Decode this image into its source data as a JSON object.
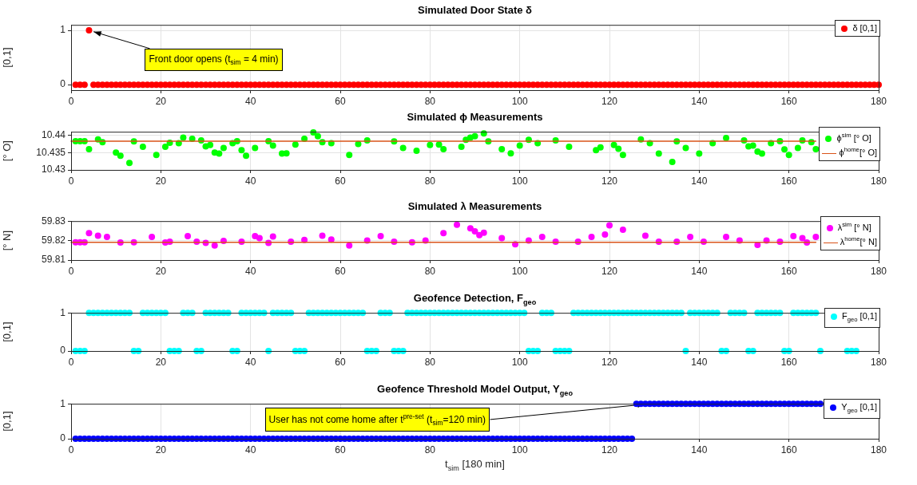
{
  "chart_data": [
    {
      "type": "scatter",
      "title": "Simulated Door State δ",
      "ylabel": "[0,1]",
      "xlim": [
        0,
        180
      ],
      "xticks": [
        0,
        20,
        40,
        60,
        80,
        100,
        120,
        140,
        160,
        180
      ],
      "ylim": [
        -0.1,
        1.1
      ],
      "yticks": [
        0,
        1
      ],
      "grid": true,
      "legend": "top right",
      "marker": "circle",
      "annotations": [
        {
          "text": "Front door opens (t$_{sim}$ = 4 min)",
          "x": 4,
          "y": 1
        }
      ],
      "x": [
        1,
        2,
        3,
        4,
        5,
        6,
        7,
        8,
        9,
        10,
        11,
        12,
        13,
        14,
        15,
        16,
        17,
        18,
        19,
        20,
        21,
        22,
        23,
        24,
        25,
        26,
        27,
        28,
        29,
        30,
        31,
        32,
        33,
        34,
        35,
        36,
        37,
        38,
        39,
        40,
        41,
        42,
        43,
        44,
        45,
        46,
        47,
        48,
        49,
        50,
        51,
        52,
        53,
        54,
        55,
        56,
        57,
        58,
        59,
        60,
        61,
        62,
        63,
        64,
        65,
        66,
        67,
        68,
        69,
        70,
        71,
        72,
        73,
        74,
        75,
        76,
        77,
        78,
        79,
        80,
        81,
        82,
        83,
        84,
        85,
        86,
        87,
        88,
        89,
        90,
        91,
        92,
        93,
        94,
        95,
        96,
        97,
        98,
        99,
        100,
        101,
        102,
        103,
        104,
        105,
        106,
        107,
        108,
        109,
        110,
        111,
        112,
        113,
        114,
        115,
        116,
        117,
        118,
        119,
        120,
        121,
        122,
        123,
        124,
        125,
        126,
        127,
        128,
        129,
        130,
        131,
        132,
        133,
        134,
        135,
        136,
        137,
        138,
        139,
        140,
        141,
        142,
        143,
        144,
        145,
        146,
        147,
        148,
        149,
        150,
        151,
        152,
        153,
        154,
        155,
        156,
        157,
        158,
        159,
        160,
        161,
        162,
        163,
        164,
        165,
        166,
        167,
        168,
        169,
        170,
        171,
        172,
        173,
        174,
        175,
        176,
        177,
        178,
        179,
        180
      ],
      "series": [
        {
          "name": "δ [0,1]",
          "color": "#ff0000",
          "values": [
            0,
            0,
            0,
            1,
            0,
            0,
            0,
            0,
            0,
            0,
            0,
            0,
            0,
            0,
            0,
            0,
            0,
            0,
            0,
            0,
            0,
            0,
            0,
            0,
            0,
            0,
            0,
            0,
            0,
            0,
            0,
            0,
            0,
            0,
            0,
            0,
            0,
            0,
            0,
            0,
            0,
            0,
            0,
            0,
            0,
            0,
            0,
            0,
            0,
            0,
            0,
            0,
            0,
            0,
            0,
            0,
            0,
            0,
            0,
            0,
            0,
            0,
            0,
            0,
            0,
            0,
            0,
            0,
            0,
            0,
            0,
            0,
            0,
            0,
            0,
            0,
            0,
            0,
            0,
            0,
            0,
            0,
            0,
            0,
            0,
            0,
            0,
            0,
            0,
            0,
            0,
            0,
            0,
            0,
            0,
            0,
            0,
            0,
            0,
            0,
            0,
            0,
            0,
            0,
            0,
            0,
            0,
            0,
            0,
            0,
            0,
            0,
            0,
            0,
            0,
            0,
            0,
            0,
            0,
            0,
            0,
            0,
            0,
            0,
            0,
            0,
            0,
            0,
            0,
            0,
            0,
            0,
            0,
            0,
            0,
            0,
            0,
            0,
            0,
            0,
            0,
            0,
            0,
            0,
            0,
            0,
            0,
            0,
            0,
            0,
            0,
            0,
            0,
            0,
            0,
            0,
            0,
            0,
            0,
            0,
            0,
            0,
            0,
            0,
            0,
            0,
            0,
            0,
            0,
            0,
            0,
            0,
            0,
            0,
            0,
            0,
            0,
            0,
            0,
            0
          ]
        }
      ]
    },
    {
      "type": "scatter",
      "title": "Simulated ϕ Measurements",
      "ylabel": "[° O]",
      "xlim": [
        0,
        180
      ],
      "xticks": [
        0,
        20,
        40,
        60,
        80,
        100,
        120,
        140,
        160,
        180
      ],
      "ylim": [
        10.43,
        10.441
      ],
      "yticks": [
        10.43,
        10.435,
        10.44
      ],
      "grid": true,
      "legend": "top right",
      "marker": "circle",
      "series": [
        {
          "name": "ϕ$^{sim}$ [° O]",
          "color": "#00ff00",
          "x": [
            1,
            2,
            3,
            4,
            6,
            7,
            10,
            11,
            13,
            14,
            16,
            19,
            21,
            22,
            24,
            25,
            27,
            29,
            30,
            31,
            32,
            33,
            34,
            36,
            37,
            38,
            39,
            41,
            44,
            45,
            47,
            48,
            50,
            52,
            54,
            55,
            56,
            58,
            62,
            64,
            66,
            72,
            74,
            77,
            80,
            82,
            83,
            87,
            88,
            89,
            90,
            92,
            93,
            96,
            98,
            100,
            102,
            104,
            108,
            111,
            117,
            118,
            121,
            122,
            123,
            127,
            129,
            131,
            134,
            135,
            137,
            140,
            143,
            146,
            150,
            151,
            152,
            153,
            154,
            156,
            158,
            159,
            160,
            162,
            163,
            165,
            166
          ],
          "values": [
            10.4383,
            10.4383,
            10.4383,
            10.436,
            10.4388,
            10.438,
            10.435,
            10.4341,
            10.432,
            10.4382,
            10.4367,
            10.4343,
            10.4367,
            10.4378,
            10.4377,
            10.4393,
            10.439,
            10.4385,
            10.4368,
            10.4372,
            10.435,
            10.4347,
            10.4363,
            10.4377,
            10.4383,
            10.4357,
            10.4341,
            10.4363,
            10.4383,
            10.437,
            10.4347,
            10.4348,
            10.4373,
            10.439,
            10.4408,
            10.4397,
            10.438,
            10.4377,
            10.4343,
            10.4375,
            10.4385,
            10.4382,
            10.4363,
            10.4355,
            10.4372,
            10.4373,
            10.436,
            10.4367,
            10.4387,
            10.4393,
            10.4397,
            10.4405,
            10.4382,
            10.436,
            10.4348,
            10.437,
            10.4387,
            10.4377,
            10.4385,
            10.4367,
            10.4357,
            10.4365,
            10.4372,
            10.4361,
            10.4343,
            10.4388,
            10.4377,
            10.4347,
            10.4323,
            10.4382,
            10.4363,
            10.4347,
            10.4377,
            10.4392,
            10.4385,
            10.4368,
            10.437,
            10.4353,
            10.4347,
            10.4377,
            10.4383,
            10.4359,
            10.4343,
            10.4363,
            10.4385,
            10.438,
            10.436
          ]
        },
        {
          "name": "ϕ$^{home}$[° O]",
          "color": "#d95319",
          "type": "line",
          "marker": "none",
          "x": [
            0,
            166
          ],
          "values": [
            10.4383,
            10.4383
          ]
        }
      ]
    },
    {
      "type": "scatter",
      "title": "Simulated λ Measurements",
      "ylabel": "[° N]",
      "xlim": [
        0,
        180
      ],
      "xticks": [
        0,
        20,
        40,
        60,
        80,
        100,
        120,
        140,
        160,
        180
      ],
      "ylim": [
        59.81,
        59.83
      ],
      "yticks": [
        59.81,
        59.82,
        59.83
      ],
      "grid": true,
      "legend": "top right",
      "marker": "circle",
      "series": [
        {
          "name": "λ$^{sim}$ [° N]",
          "color": "#ff00ff",
          "x": [
            1,
            2,
            3,
            4,
            6,
            8,
            11,
            14,
            18,
            21,
            22,
            26,
            28,
            30,
            32,
            34,
            38,
            41,
            42,
            44,
            45,
            49,
            52,
            56,
            58,
            62,
            66,
            69,
            72,
            76,
            79,
            83,
            86,
            89,
            90,
            91,
            92,
            96,
            99,
            102,
            105,
            108,
            113,
            116,
            119,
            120,
            123,
            128,
            131,
            135,
            138,
            141,
            146,
            149,
            153,
            155,
            158,
            161,
            163,
            164,
            166
          ],
          "values": [
            59.8191,
            59.8191,
            59.8191,
            59.8238,
            59.8225,
            59.8219,
            59.819,
            59.8191,
            59.8219,
            59.819,
            59.8194,
            59.8223,
            59.8194,
            59.8188,
            59.8175,
            59.8198,
            59.8194,
            59.8223,
            59.8213,
            59.8188,
            59.8221,
            59.8194,
            59.8203,
            59.8225,
            59.8206,
            59.8175,
            59.82,
            59.8223,
            59.8194,
            59.8191,
            59.82,
            59.8238,
            59.8281,
            59.8263,
            59.8248,
            59.8228,
            59.824,
            59.8213,
            59.8181,
            59.82,
            59.8219,
            59.8194,
            59.8194,
            59.8219,
            59.8231,
            59.8278,
            59.8256,
            59.8225,
            59.8194,
            59.8194,
            59.8219,
            59.8194,
            59.8219,
            59.82,
            59.8178,
            59.82,
            59.8194,
            59.8223,
            59.8213,
            59.819,
            59.8219
          ]
        },
        {
          "name": "λ$^{home}$[° N]",
          "color": "#d95319",
          "type": "line",
          "marker": "none",
          "x": [
            0,
            166
          ],
          "values": [
            59.8191,
            59.8191
          ]
        }
      ]
    },
    {
      "type": "scatter",
      "title": "Geofence Detection, F$_{geo}$",
      "ylabel": "[0,1]",
      "xlim": [
        0,
        180
      ],
      "xticks": [
        0,
        20,
        40,
        60,
        80,
        100,
        120,
        140,
        160,
        180
      ],
      "ylim": [
        0,
        1
      ],
      "yticks": [
        0,
        1
      ],
      "grid": true,
      "legend": "top right",
      "marker": "circle",
      "series": [
        {
          "name": "F$_{geo}$ [0,1]",
          "color": "#00ffff",
          "x": [
            1,
            2,
            3,
            4,
            5,
            6,
            7,
            8,
            9,
            10,
            11,
            12,
            13,
            14,
            15,
            16,
            17,
            18,
            19,
            20,
            21,
            22,
            23,
            24,
            25,
            26,
            27,
            28,
            29,
            30,
            31,
            32,
            33,
            34,
            35,
            36,
            37,
            38,
            39,
            40,
            41,
            42,
            43,
            44,
            45,
            46,
            47,
            48,
            49,
            50,
            51,
            52,
            53,
            54,
            55,
            56,
            57,
            58,
            59,
            60,
            61,
            62,
            63,
            64,
            65,
            66,
            67,
            68,
            69,
            70,
            71,
            72,
            73,
            74,
            75,
            76,
            77,
            78,
            79,
            80,
            81,
            82,
            83,
            84,
            85,
            86,
            87,
            88,
            89,
            90,
            91,
            92,
            93,
            94,
            95,
            96,
            97,
            98,
            99,
            100,
            101,
            102,
            103,
            104,
            105,
            106,
            107,
            108,
            109,
            110,
            111,
            112,
            113,
            114,
            115,
            116,
            117,
            118,
            119,
            120,
            121,
            122,
            123,
            124,
            125,
            126,
            127,
            128,
            129,
            130,
            131,
            132,
            133,
            134,
            135,
            136,
            137,
            138,
            139,
            140,
            141,
            142,
            143,
            144,
            145,
            146,
            147,
            148,
            149,
            150,
            151,
            152,
            153,
            154,
            155,
            156,
            157,
            158,
            159,
            160,
            161,
            162,
            163,
            164,
            165,
            166,
            167,
            173,
            174,
            175
          ],
          "values": [
            0,
            0,
            0,
            1,
            1,
            1,
            1,
            1,
            1,
            1,
            1,
            1,
            1,
            0,
            0,
            1,
            1,
            1,
            1,
            1,
            1,
            0,
            0,
            0,
            1,
            1,
            1,
            0,
            0,
            1,
            1,
            1,
            1,
            1,
            1,
            0,
            0,
            1,
            1,
            1,
            1,
            1,
            1,
            0,
            1,
            1,
            1,
            1,
            1,
            0,
            0,
            0,
            1,
            1,
            1,
            1,
            1,
            1,
            1,
            1,
            1,
            1,
            1,
            1,
            1,
            0,
            0,
            0,
            1,
            1,
            1,
            0,
            0,
            0,
            1,
            1,
            1,
            1,
            1,
            1,
            1,
            1,
            1,
            1,
            1,
            1,
            1,
            1,
            1,
            1,
            1,
            1,
            1,
            1,
            1,
            1,
            1,
            1,
            1,
            1,
            1,
            0,
            0,
            0,
            1,
            1,
            1,
            0,
            0,
            0,
            0,
            1,
            1,
            1,
            1,
            1,
            1,
            1,
            1,
            1,
            1,
            1,
            1,
            1,
            1,
            1,
            1,
            1,
            1,
            1,
            1,
            1,
            1,
            1,
            1,
            1,
            0,
            1,
            1,
            1,
            1,
            1,
            1,
            1,
            0,
            0,
            1,
            1,
            1,
            1,
            0,
            0,
            1,
            1,
            1,
            1,
            1,
            1,
            0,
            0,
            1,
            1,
            1,
            1,
            1,
            1,
            0,
            0,
            0,
            0
          ]
        }
      ]
    },
    {
      "type": "scatter",
      "title": "Geofence Threshold Model Output, Y$_{geo}$",
      "ylabel": "[0,1]",
      "xlabel": "t$_{sim}$ [180 min]",
      "xlim": [
        0,
        180
      ],
      "xticks": [
        0,
        20,
        40,
        60,
        80,
        100,
        120,
        140,
        160,
        180
      ],
      "ylim": [
        0,
        1
      ],
      "yticks": [
        0,
        1
      ],
      "grid": true,
      "legend": "top right",
      "marker": "circle",
      "annotations": [
        {
          "text": "User has not come home after t$^{pre-set}$ (t$_{sim}$=120 min)",
          "x": 129,
          "y": 1
        }
      ],
      "x": [
        1,
        2,
        3,
        4,
        5,
        6,
        7,
        8,
        9,
        10,
        11,
        12,
        13,
        14,
        15,
        16,
        17,
        18,
        19,
        20,
        21,
        22,
        23,
        24,
        25,
        26,
        27,
        28,
        29,
        30,
        31,
        32,
        33,
        34,
        35,
        36,
        37,
        38,
        39,
        40,
        41,
        42,
        43,
        44,
        45,
        46,
        47,
        48,
        49,
        50,
        51,
        52,
        53,
        54,
        55,
        56,
        57,
        58,
        59,
        60,
        61,
        62,
        63,
        64,
        65,
        66,
        67,
        68,
        69,
        70,
        71,
        72,
        73,
        74,
        75,
        76,
        77,
        78,
        79,
        80,
        81,
        82,
        83,
        84,
        85,
        86,
        87,
        88,
        89,
        90,
        91,
        92,
        93,
        94,
        95,
        96,
        97,
        98,
        99,
        100,
        101,
        102,
        103,
        104,
        105,
        106,
        107,
        108,
        109,
        110,
        111,
        112,
        113,
        114,
        115,
        116,
        117,
        118,
        119,
        120,
        121,
        122,
        123,
        124,
        125,
        126,
        127,
        128,
        129,
        130,
        131,
        132,
        133,
        134,
        135,
        136,
        137,
        138,
        139,
        140,
        141,
        142,
        143,
        144,
        145,
        146,
        147,
        148,
        149,
        150,
        151,
        152,
        153,
        154,
        155,
        156,
        157,
        158,
        159,
        160,
        161,
        162,
        163,
        164,
        165,
        166,
        167
      ],
      "series": [
        {
          "name": "Y$_{geo}$ [0,1]",
          "color": "#0000ff",
          "values": [
            0,
            0,
            0,
            0,
            0,
            0,
            0,
            0,
            0,
            0,
            0,
            0,
            0,
            0,
            0,
            0,
            0,
            0,
            0,
            0,
            0,
            0,
            0,
            0,
            0,
            0,
            0,
            0,
            0,
            0,
            0,
            0,
            0,
            0,
            0,
            0,
            0,
            0,
            0,
            0,
            0,
            0,
            0,
            0,
            0,
            0,
            0,
            0,
            0,
            0,
            0,
            0,
            0,
            0,
            0,
            0,
            0,
            0,
            0,
            0,
            0,
            0,
            0,
            0,
            0,
            0,
            0,
            0,
            0,
            0,
            0,
            0,
            0,
            0,
            0,
            0,
            0,
            0,
            0,
            0,
            0,
            0,
            0,
            0,
            0,
            0,
            0,
            0,
            0,
            0,
            0,
            0,
            0,
            0,
            0,
            0,
            0,
            0,
            0,
            0,
            0,
            0,
            0,
            0,
            0,
            0,
            0,
            0,
            0,
            0,
            0,
            0,
            0,
            0,
            0,
            0,
            0,
            0,
            0,
            0,
            0,
            0,
            0,
            0,
            0,
            1,
            1,
            1,
            1,
            1,
            1,
            1,
            1,
            1,
            1,
            1,
            1,
            1,
            1,
            1,
            1,
            1,
            1,
            1,
            1,
            1,
            1,
            1,
            1,
            1,
            1,
            1,
            1,
            1,
            1,
            1,
            1,
            1,
            1,
            1,
            1,
            1,
            1,
            1,
            1,
            1,
            1
          ]
        }
      ]
    }
  ]
}
